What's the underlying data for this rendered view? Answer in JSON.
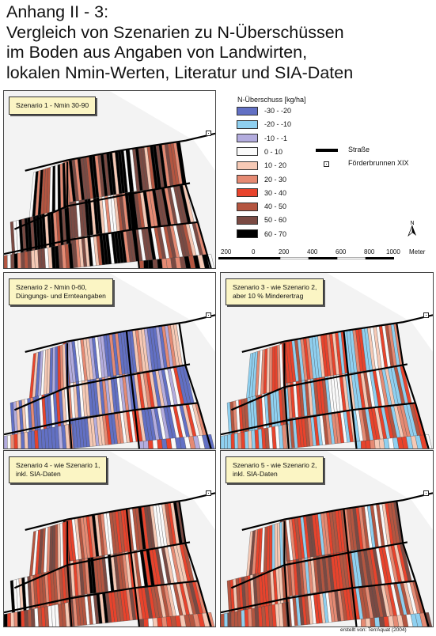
{
  "title": {
    "line1": "Anhang II - 3:",
    "line2": "Vergleich von Szenarien zu N-Überschüssen",
    "line3": "im Boden aus Angaben von Landwirten,",
    "line4": "lokalen Nmin-Werten, Literatur und SIA-Daten"
  },
  "legend": {
    "title": "N-Überschuss [kg/ha]",
    "classes": [
      {
        "label": "-30 - -20",
        "color": "#6270c4"
      },
      {
        "label": "-20 - -10",
        "color": "#8fd0f0"
      },
      {
        "label": "-10 - -1",
        "color": "#b3acde"
      },
      {
        "label": "0 - 10",
        "color": "#fafafa"
      },
      {
        "label": "10 - 20",
        "color": "#f6c9b5"
      },
      {
        "label": "20 - 30",
        "color": "#e58a73"
      },
      {
        "label": "30 - 40",
        "color": "#e8432c"
      },
      {
        "label": "40 - 50",
        "color": "#b45540"
      },
      {
        "label": "50 - 60",
        "color": "#7a4a43"
      },
      {
        "label": "60 - 70",
        "color": "#000000"
      }
    ],
    "road_label": "Straße",
    "well_label": "Förderbrunnen XIX"
  },
  "scale": {
    "ticks": [
      "200",
      "0",
      "200",
      "400",
      "600",
      "800",
      "1000"
    ],
    "unit": "Meter"
  },
  "north_label": "N",
  "panels": [
    {
      "id": "s1",
      "label": [
        "Szenario 1 - Nmin 30-90"
      ],
      "palette": [
        9,
        9,
        9,
        8,
        8,
        7,
        4,
        3,
        5
      ]
    },
    {
      "id": "s2",
      "label": [
        "Szenario 2 - Nmin 0-60,",
        "Düngungs- und Ernteangaben"
      ],
      "palette": [
        0,
        0,
        0,
        2,
        3,
        4,
        4,
        5,
        6
      ]
    },
    {
      "id": "s3",
      "label": [
        "Szenario 3 - wie Szenario 2,",
        "aber 10 % Minderertrag"
      ],
      "palette": [
        1,
        1,
        1,
        3,
        4,
        5,
        6,
        6,
        7
      ]
    },
    {
      "id": "s4",
      "label": [
        "Szenario 4 - wie Szenario 1,",
        "inkl. SIA-Daten"
      ],
      "palette": [
        6,
        6,
        7,
        7,
        3,
        4,
        5,
        8,
        9
      ]
    },
    {
      "id": "s5",
      "label": [
        "Szenario 5 - wie Szenario 2,",
        "inkl. SIA-Daten"
      ],
      "palette": [
        6,
        6,
        5,
        4,
        3,
        7,
        7,
        1,
        8
      ]
    }
  ],
  "credit": "erstellt von: TerrAquat (2004)"
}
